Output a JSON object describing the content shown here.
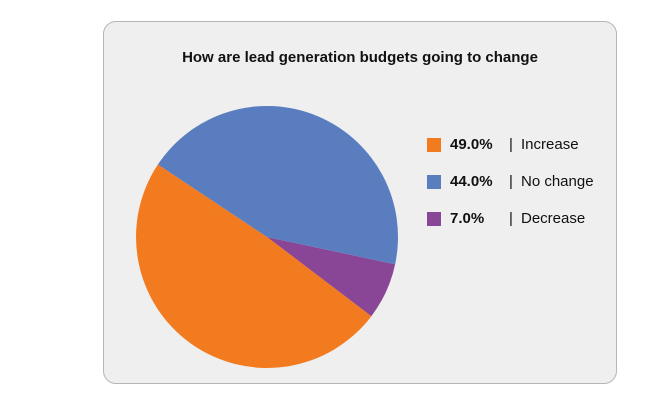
{
  "chart_data": {
    "type": "pie",
    "title": "How are lead generation budgets going to change",
    "slices": [
      {
        "label": "Increase",
        "value": 49.0,
        "value_label": "49.0%",
        "color": "#f27a1f"
      },
      {
        "label": "No change",
        "value": 44.0,
        "value_label": "44.0%",
        "color": "#5a7dc0"
      },
      {
        "label": "Decrease",
        "value": 7.0,
        "value_label": "7.0%",
        "color": "#8a4696"
      }
    ],
    "legend_position": "right",
    "legend_separator": "|"
  }
}
